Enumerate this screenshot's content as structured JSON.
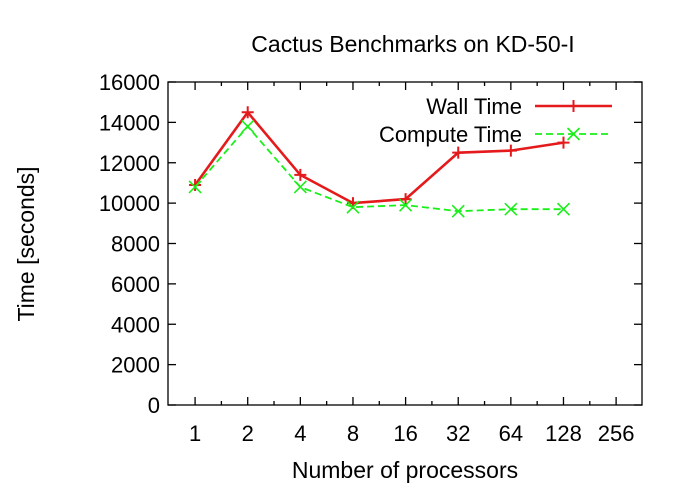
{
  "chart_data": {
    "type": "line",
    "title": "Cactus Benchmarks on KD-50-I",
    "xlabel": "Number of processors",
    "ylabel": "Time [seconds]",
    "xscale": "log2",
    "x_ticks": [
      "1",
      "2",
      "4",
      "8",
      "16",
      "32",
      "64",
      "128",
      "256"
    ],
    "y_ticks": [
      "0",
      "2000",
      "4000",
      "6000",
      "8000",
      "10000",
      "12000",
      "14000",
      "16000"
    ],
    "xlim": [
      0.7,
      360
    ],
    "ylim": [
      0,
      16000
    ],
    "x": [
      1,
      2,
      4,
      8,
      16,
      32,
      64,
      128
    ],
    "series": [
      {
        "name": "Wall Time",
        "values": [
          10900,
          14500,
          11400,
          10000,
          10200,
          12500,
          12600,
          13000
        ],
        "color": "#e41a1c",
        "line": "solid",
        "marker": "plus"
      },
      {
        "name": "Compute Time",
        "values": [
          10800,
          13800,
          10800,
          9800,
          9900,
          9600,
          9700,
          9700
        ],
        "color": "#1aef1a",
        "line": "dashed",
        "marker": "x"
      }
    ],
    "legend_position": "top-right",
    "grid": false
  }
}
